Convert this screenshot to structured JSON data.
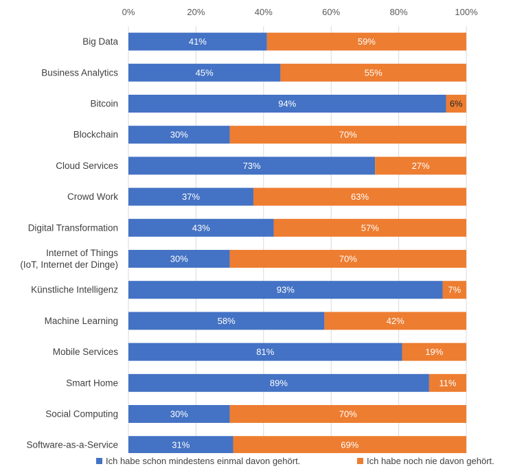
{
  "chart_data": {
    "type": "bar",
    "orientation": "horizontal",
    "stacked": true,
    "percent_axis": true,
    "xlim": [
      0,
      100
    ],
    "x_ticks": [
      "0%",
      "20%",
      "40%",
      "60%",
      "80%",
      "100%"
    ],
    "x_tick_values": [
      0,
      20,
      40,
      60,
      80,
      100
    ],
    "grid": true,
    "legend_position": "bottom",
    "categories": [
      [
        "Big Data"
      ],
      [
        "Business Analytics"
      ],
      [
        "Bitcoin"
      ],
      [
        "Blockchain"
      ],
      [
        "Cloud Services"
      ],
      [
        "Crowd Work"
      ],
      [
        "Digital Transformation"
      ],
      [
        "Internet of Things",
        "(IoT, Internet der Dinge)"
      ],
      [
        "Künstliche Intelligenz"
      ],
      [
        "Machine Learning"
      ],
      [
        "Mobile Services"
      ],
      [
        "Smart Home"
      ],
      [
        "Social Computing"
      ],
      [
        "Software-as-a-Service"
      ]
    ],
    "series": [
      {
        "name": "Ich habe schon mindestens einmal davon gehört.",
        "color": "#4472c4",
        "values": [
          41,
          45,
          94,
          30,
          73,
          37,
          43,
          30,
          93,
          58,
          81,
          89,
          30,
          31
        ],
        "labels": [
          "41%",
          "45%",
          "94%",
          "30%",
          "73%",
          "37%",
          "43%",
          "30%",
          "93%",
          "58%",
          "81%",
          "89%",
          "30%",
          "31%"
        ]
      },
      {
        "name": "Ich habe noch nie davon gehört.",
        "color": "#ed7d31",
        "values": [
          59,
          55,
          6,
          70,
          27,
          63,
          57,
          70,
          7,
          42,
          19,
          11,
          70,
          69
        ],
        "labels": [
          "59%",
          "55%",
          "6%",
          "70%",
          "27%",
          "63%",
          "57%",
          "70%",
          "7%",
          "42%",
          "19%",
          "11%",
          "70%",
          "69%"
        ]
      }
    ]
  }
}
